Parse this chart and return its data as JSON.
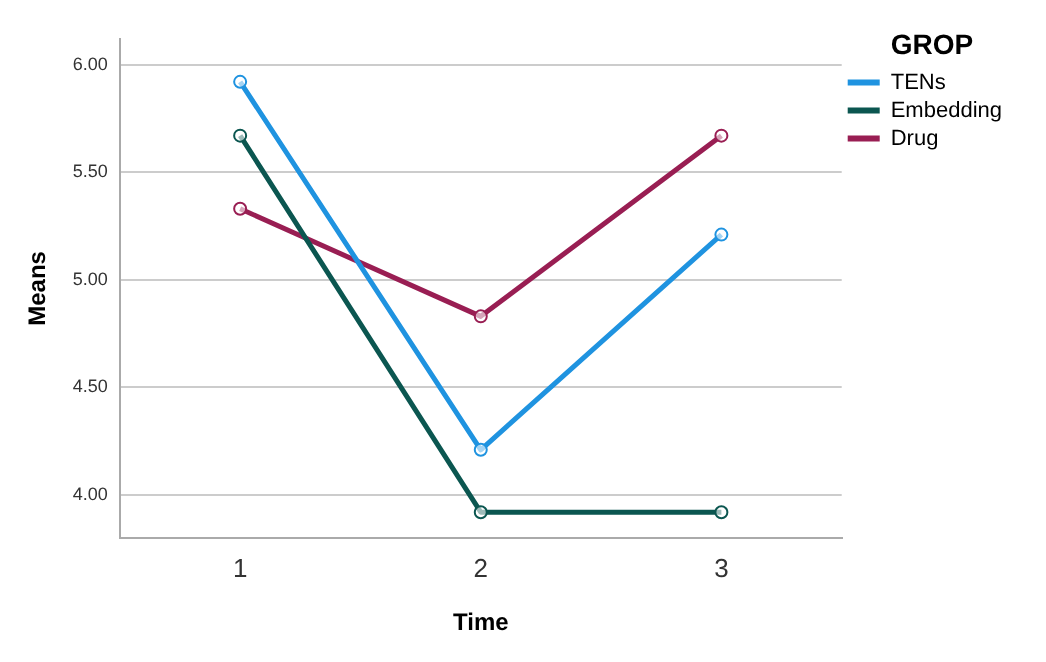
{
  "chart_data": {
    "type": "line",
    "xlabel": "Time",
    "ylabel": "Means",
    "legend_title": "GROP",
    "categories": [
      "1",
      "2",
      "3"
    ],
    "series": [
      {
        "name": "TENs",
        "color": "#1f93e0",
        "values": [
          5.92,
          4.21,
          5.21
        ]
      },
      {
        "name": "Embedding",
        "color": "#0b5650",
        "values": [
          5.67,
          3.92,
          3.92
        ]
      },
      {
        "name": "Drug",
        "color": "#991e53",
        "values": [
          5.33,
          4.83,
          5.67
        ]
      }
    ],
    "ylim": [
      3.8,
      6.12
    ],
    "yticks": [
      {
        "value": 4,
        "label": "4.00"
      },
      {
        "value": 4.5,
        "label": "4.50"
      },
      {
        "value": 5,
        "label": "5.00"
      },
      {
        "value": 5.5,
        "label": "5.50"
      },
      {
        "value": 6,
        "label": "6.00"
      }
    ],
    "grid": "y",
    "legend": "top right",
    "marker": "circle",
    "line_style": "solid"
  }
}
